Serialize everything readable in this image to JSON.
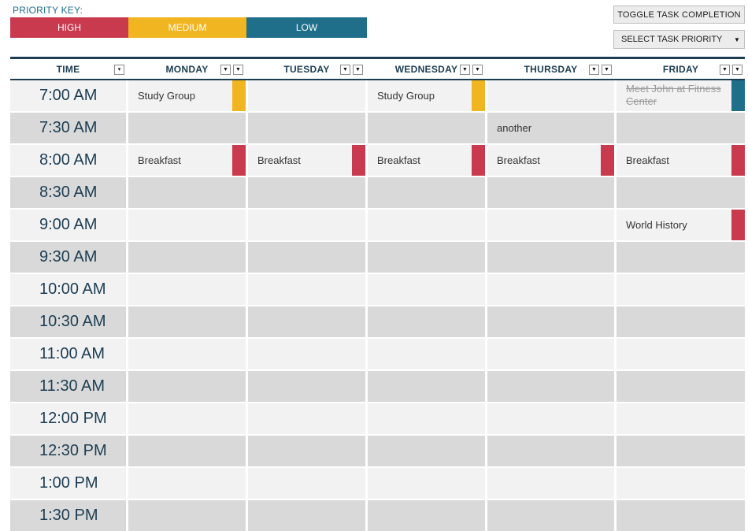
{
  "priority_key": {
    "label": "PRIORITY KEY:",
    "levels": [
      {
        "name": "HIGH",
        "color": "#c93a4f"
      },
      {
        "name": "MEDIUM",
        "color": "#f2b522"
      },
      {
        "name": "LOW",
        "color": "#1f6f8b"
      }
    ]
  },
  "buttons": {
    "toggle_label": "TOGGLE TASK COMPLETION",
    "select_label": "SELECT TASK PRIORITY"
  },
  "colors": {
    "header_text": "#1c3d52",
    "row_light": "#f2f2f2",
    "row_dark": "#d9d9d9"
  },
  "columns": {
    "time": "TIME",
    "days": [
      "MONDAY",
      "TUESDAY",
      "WEDNESDAY",
      "THURSDAY",
      "FRIDAY"
    ]
  },
  "rows": [
    {
      "time": "7:00 AM",
      "cells": [
        {
          "text": "Study Group",
          "priority": "MEDIUM"
        },
        {
          "text": ""
        },
        {
          "text": "Study Group",
          "priority": "MEDIUM"
        },
        {
          "text": ""
        },
        {
          "text": "Meet John at Fitness Center",
          "priority": "LOW",
          "done": true
        }
      ]
    },
    {
      "time": "7:30 AM",
      "cells": [
        {
          "text": ""
        },
        {
          "text": ""
        },
        {
          "text": ""
        },
        {
          "text": "another"
        },
        {
          "text": ""
        }
      ]
    },
    {
      "time": "8:00 AM",
      "cells": [
        {
          "text": "Breakfast",
          "priority": "HIGH"
        },
        {
          "text": "Breakfast",
          "priority": "HIGH"
        },
        {
          "text": "Breakfast",
          "priority": "HIGH"
        },
        {
          "text": "Breakfast",
          "priority": "HIGH"
        },
        {
          "text": "Breakfast",
          "priority": "HIGH"
        }
      ]
    },
    {
      "time": "8:30 AM",
      "cells": [
        {
          "text": ""
        },
        {
          "text": ""
        },
        {
          "text": ""
        },
        {
          "text": ""
        },
        {
          "text": ""
        }
      ]
    },
    {
      "time": "9:00 AM",
      "cells": [
        {
          "text": ""
        },
        {
          "text": ""
        },
        {
          "text": ""
        },
        {
          "text": ""
        },
        {
          "text": "World History",
          "priority": "HIGH"
        }
      ]
    },
    {
      "time": "9:30 AM",
      "cells": [
        {
          "text": ""
        },
        {
          "text": ""
        },
        {
          "text": ""
        },
        {
          "text": ""
        },
        {
          "text": ""
        }
      ]
    },
    {
      "time": "10:00 AM",
      "cells": [
        {
          "text": ""
        },
        {
          "text": ""
        },
        {
          "text": ""
        },
        {
          "text": ""
        },
        {
          "text": ""
        }
      ]
    },
    {
      "time": "10:30 AM",
      "cells": [
        {
          "text": ""
        },
        {
          "text": ""
        },
        {
          "text": ""
        },
        {
          "text": ""
        },
        {
          "text": ""
        }
      ]
    },
    {
      "time": "11:00 AM",
      "cells": [
        {
          "text": ""
        },
        {
          "text": ""
        },
        {
          "text": ""
        },
        {
          "text": ""
        },
        {
          "text": ""
        }
      ]
    },
    {
      "time": "11:30 AM",
      "cells": [
        {
          "text": ""
        },
        {
          "text": ""
        },
        {
          "text": ""
        },
        {
          "text": ""
        },
        {
          "text": ""
        }
      ]
    },
    {
      "time": "12:00 PM",
      "cells": [
        {
          "text": ""
        },
        {
          "text": ""
        },
        {
          "text": ""
        },
        {
          "text": ""
        },
        {
          "text": ""
        }
      ]
    },
    {
      "time": "12:30 PM",
      "cells": [
        {
          "text": ""
        },
        {
          "text": ""
        },
        {
          "text": ""
        },
        {
          "text": ""
        },
        {
          "text": ""
        }
      ]
    },
    {
      "time": "1:00 PM",
      "cells": [
        {
          "text": ""
        },
        {
          "text": ""
        },
        {
          "text": ""
        },
        {
          "text": ""
        },
        {
          "text": ""
        }
      ]
    },
    {
      "time": "1:30 PM",
      "cells": [
        {
          "text": ""
        },
        {
          "text": ""
        },
        {
          "text": ""
        },
        {
          "text": ""
        },
        {
          "text": ""
        }
      ]
    }
  ]
}
